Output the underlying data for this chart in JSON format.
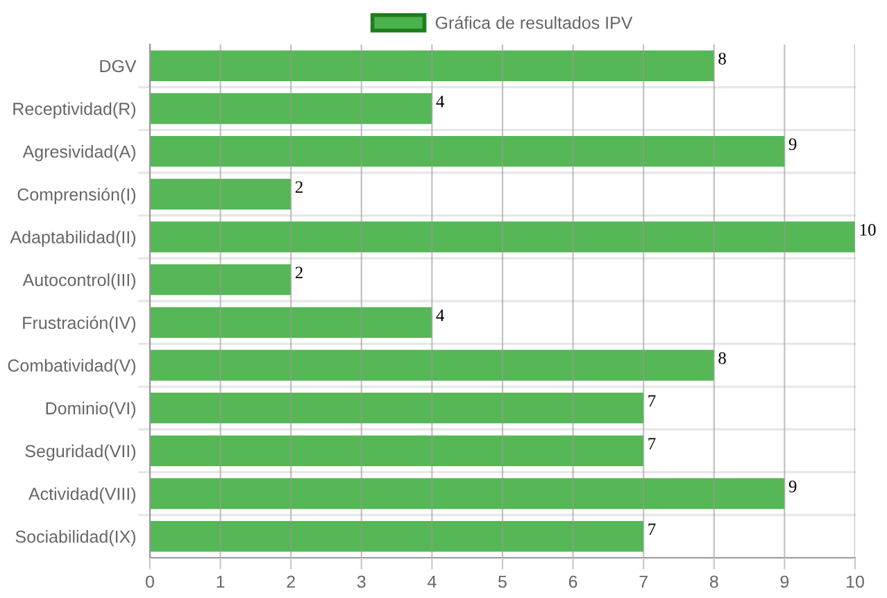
{
  "chart_data": {
    "type": "bar",
    "orientation": "horizontal",
    "categories": [
      "DGV",
      "Receptividad(R)",
      "Agresividad(A)",
      "Comprensión(I)",
      "Adaptabilidad(II)",
      "Autocontrol(III)",
      "Frustración(IV)",
      "Combatividad(V)",
      "Dominio(VI)",
      "Seguridad(VII)",
      "Actividad(VIII)",
      "Sociabilidad(IX)"
    ],
    "series": [
      {
        "name": "Gráfica de resultados IPV",
        "color": "#4cb34c",
        "values": [
          8,
          4,
          9,
          2,
          10,
          2,
          4,
          8,
          7,
          7,
          9,
          7
        ]
      }
    ],
    "xlim": [
      0,
      10
    ],
    "xticks": [
      0,
      1,
      2,
      3,
      4,
      5,
      6,
      7,
      8,
      9,
      10
    ],
    "grid": true,
    "legend": "top",
    "data_labels": true
  }
}
